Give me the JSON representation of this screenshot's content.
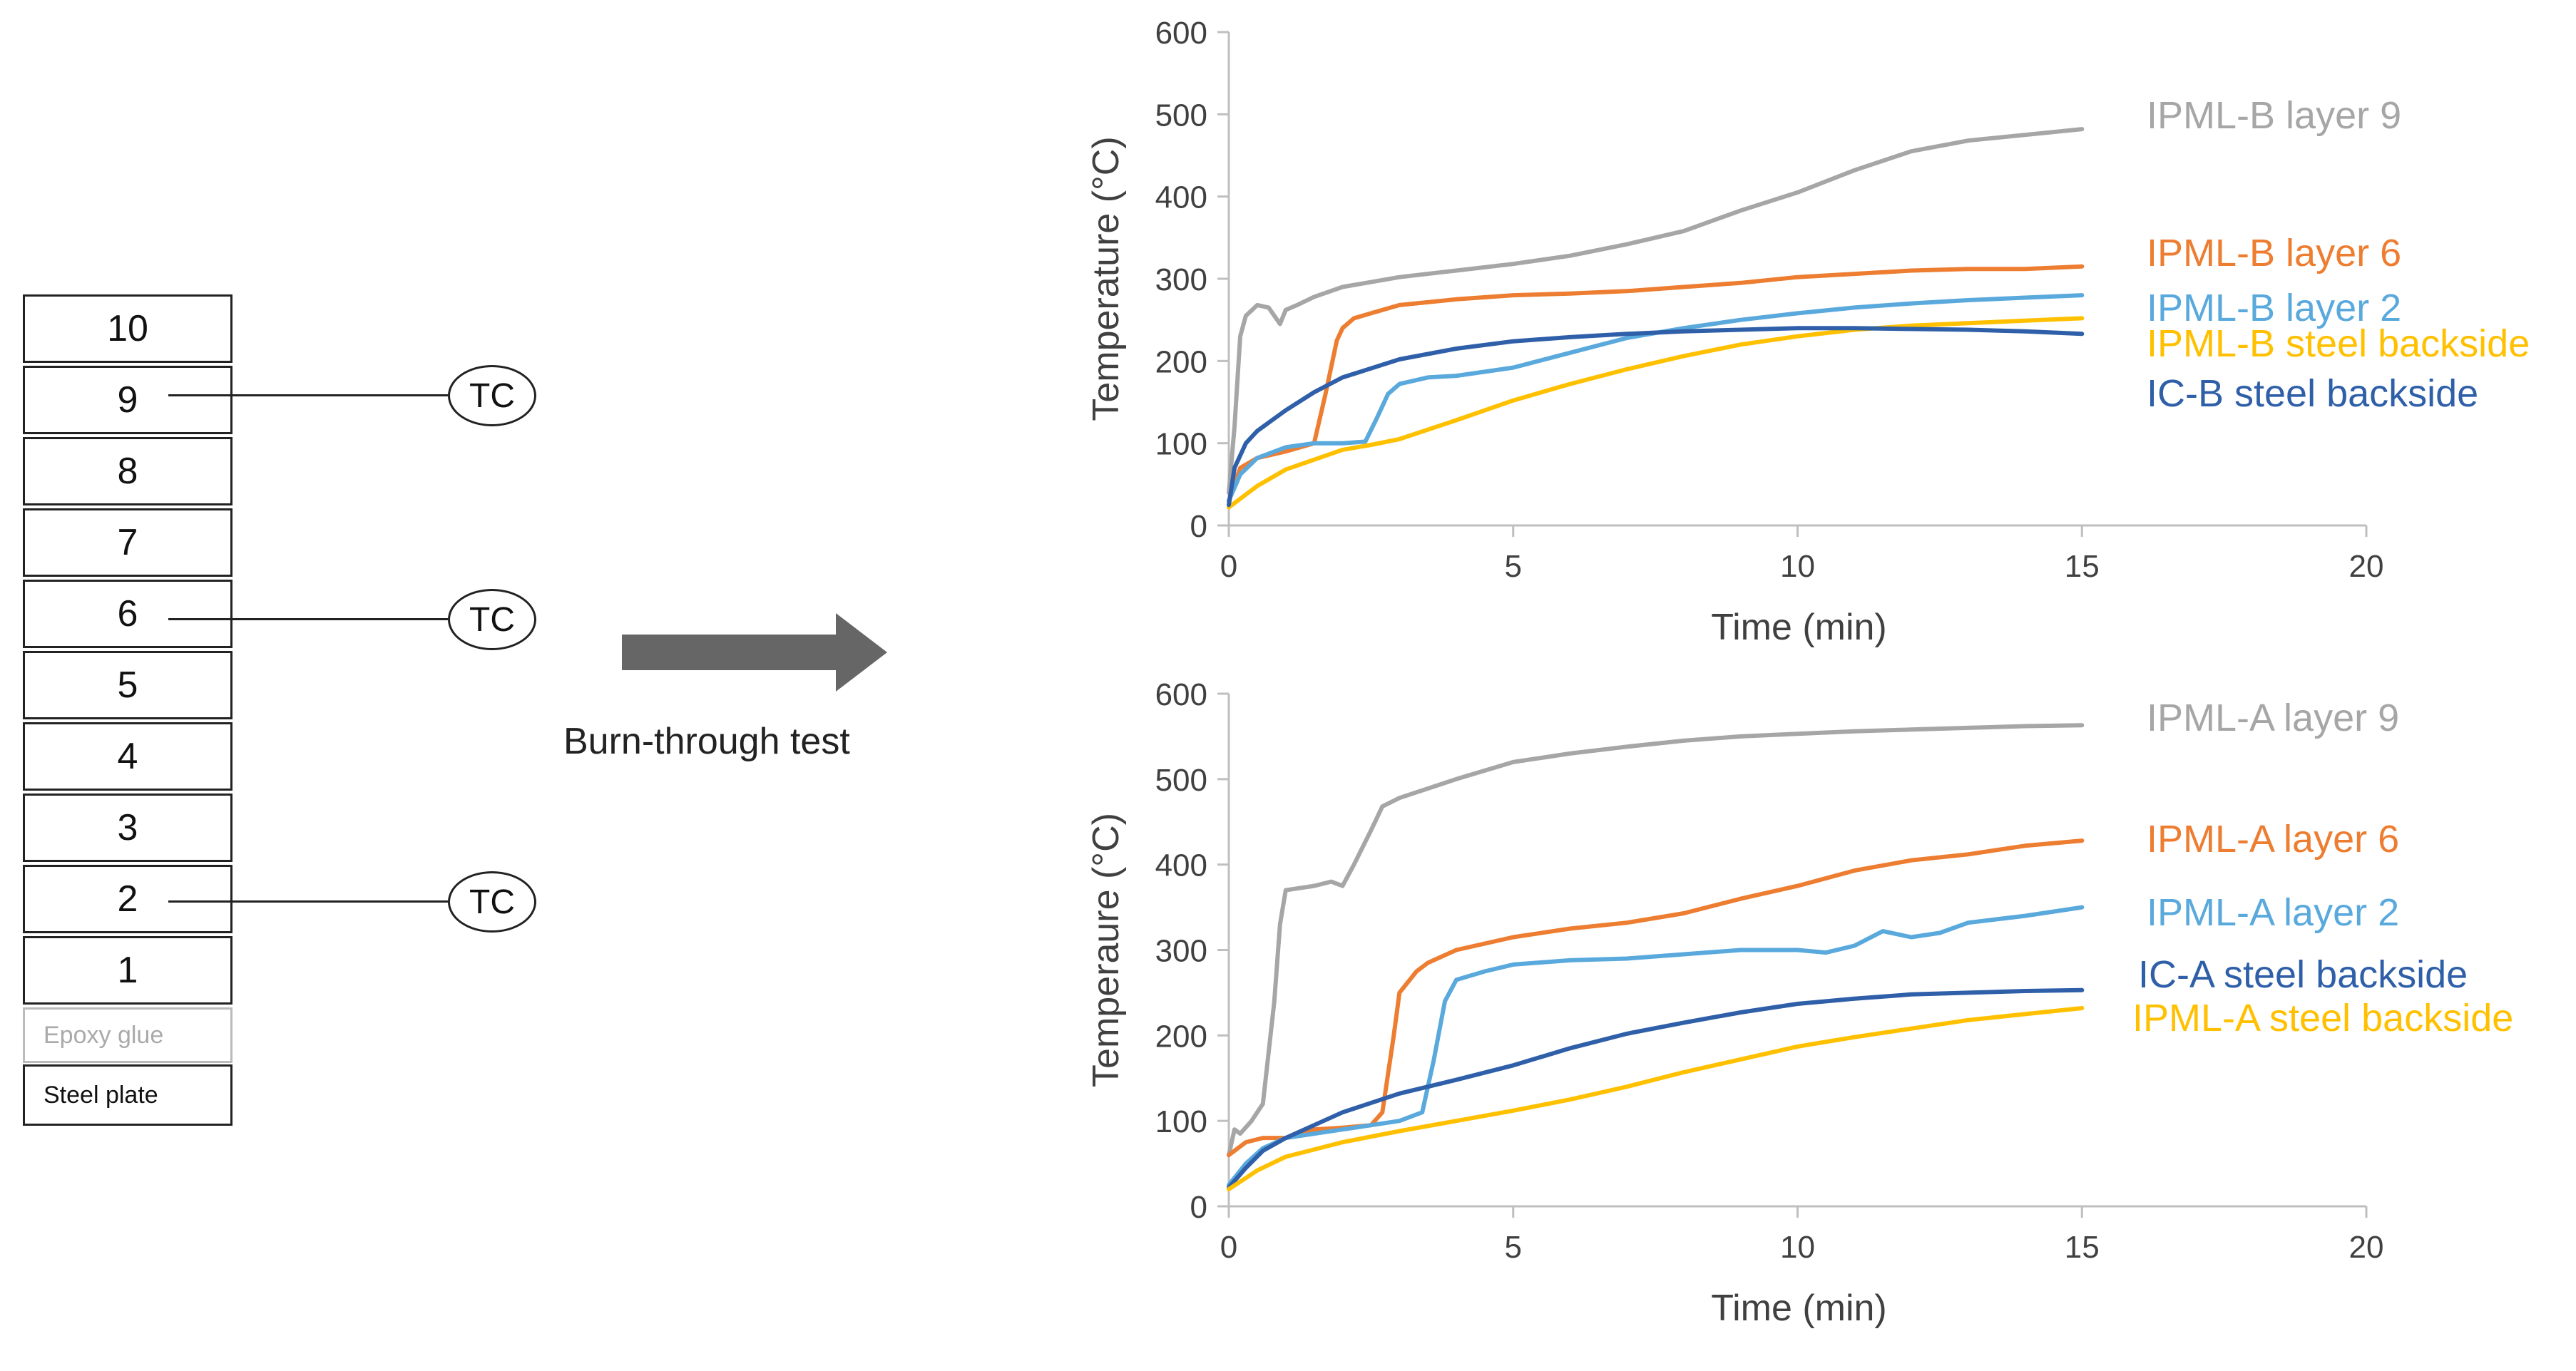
{
  "diagram": {
    "layers": [
      "10",
      "9",
      "8",
      "7",
      "6",
      "5",
      "4",
      "3",
      "2",
      "1"
    ],
    "epoxy_label": "Epoxy glue",
    "steel_label": "Steel plate",
    "thermocouple_label": "TC",
    "thermocouple_layers": [
      "9",
      "6",
      "2"
    ],
    "arrow_label": "Burn-through test"
  },
  "chart_data": [
    {
      "type": "line",
      "title": "",
      "xlabel": "Time (min)",
      "ylabel": "Temperature (°C)",
      "xlim": [
        0,
        20
      ],
      "ylim": [
        0,
        600
      ],
      "xticks": [
        "0",
        "5",
        "10",
        "15",
        "20"
      ],
      "yticks": [
        "0",
        "100",
        "200",
        "300",
        "400",
        "500",
        "600"
      ],
      "grid": false,
      "legend": "inline labels at right",
      "series": [
        {
          "name": "IPML-B layer 9",
          "color": "#a6a6a6",
          "x": [
            0,
            0.1,
            0.2,
            0.3,
            0.5,
            0.7,
            0.8,
            0.9,
            1.0,
            1.2,
            1.5,
            2,
            3,
            4,
            5,
            6,
            7,
            8,
            9,
            10,
            11,
            12,
            13,
            14,
            15
          ],
          "y": [
            40,
            120,
            230,
            255,
            268,
            265,
            255,
            245,
            262,
            268,
            278,
            290,
            302,
            310,
            318,
            328,
            342,
            358,
            383,
            405,
            432,
            455,
            468,
            475,
            482
          ]
        },
        {
          "name": "IPML-B layer 6",
          "color": "#ed7d31",
          "x": [
            0,
            0.2,
            0.5,
            1.0,
            1.5,
            1.7,
            1.9,
            2.0,
            2.2,
            2.5,
            3,
            4,
            5,
            6,
            7,
            8,
            9,
            10,
            11,
            12,
            13,
            14,
            15
          ],
          "y": [
            30,
            70,
            82,
            90,
            100,
            160,
            225,
            240,
            252,
            258,
            268,
            275,
            280,
            282,
            285,
            290,
            295,
            302,
            306,
            310,
            312,
            312,
            315
          ]
        },
        {
          "name": "IPML-B layer 2",
          "color": "#5aa9dd",
          "x": [
            0,
            0.2,
            0.5,
            1.0,
            1.5,
            2.0,
            2.4,
            2.6,
            2.8,
            3.0,
            3.5,
            4,
            5,
            6,
            7,
            8,
            9,
            10,
            11,
            12,
            13,
            14,
            15
          ],
          "y": [
            30,
            62,
            82,
            95,
            100,
            100,
            102,
            130,
            160,
            172,
            180,
            182,
            192,
            210,
            228,
            240,
            250,
            258,
            265,
            270,
            274,
            277,
            280
          ]
        },
        {
          "name": "IPML-B steel backside",
          "color": "#ffc000",
          "x": [
            0,
            0.5,
            1,
            2,
            2.5,
            3,
            4,
            5,
            6,
            7,
            8,
            9,
            10,
            11,
            12,
            13,
            14,
            15
          ],
          "y": [
            22,
            48,
            68,
            92,
            98,
            105,
            128,
            152,
            172,
            190,
            206,
            220,
            230,
            238,
            243,
            246,
            249,
            252
          ]
        },
        {
          "name": "IC-B steel backside",
          "color": "#2e5fa8",
          "x": [
            0,
            0.1,
            0.3,
            0.5,
            1,
            1.5,
            2,
            3,
            4,
            5,
            6,
            7,
            8,
            9,
            10,
            11,
            12,
            13,
            14,
            15
          ],
          "y": [
            25,
            70,
            100,
            115,
            140,
            162,
            180,
            202,
            215,
            224,
            229,
            233,
            236,
            238,
            240,
            240,
            239,
            238,
            236,
            233
          ]
        }
      ]
    },
    {
      "type": "line",
      "title": "",
      "xlabel": "Time (min)",
      "ylabel": "Temperaure (°C)",
      "xlim": [
        0,
        20
      ],
      "ylim": [
        0,
        600
      ],
      "xticks": [
        "0",
        "5",
        "10",
        "15",
        "20"
      ],
      "yticks": [
        "0",
        "100",
        "200",
        "300",
        "400",
        "500",
        "600"
      ],
      "grid": false,
      "legend": "inline labels at right",
      "series": [
        {
          "name": "IPML-A layer 9",
          "color": "#a6a6a6",
          "x": [
            0,
            0.1,
            0.2,
            0.4,
            0.6,
            0.8,
            0.9,
            1.0,
            1.2,
            1.5,
            1.8,
            2.0,
            2.2,
            2.5,
            2.7,
            3,
            4,
            5,
            6,
            7,
            8,
            9,
            10,
            11,
            12,
            13,
            14,
            15
          ],
          "y": [
            60,
            90,
            85,
            100,
            120,
            240,
            330,
            370,
            372,
            375,
            380,
            375,
            400,
            440,
            468,
            478,
            500,
            520,
            530,
            538,
            545,
            550,
            553,
            556,
            558,
            560,
            562,
            563
          ]
        },
        {
          "name": "IPML-A layer 6",
          "color": "#ed7d31",
          "x": [
            0,
            0.3,
            0.6,
            1,
            1.5,
            2,
            2.5,
            2.7,
            2.9,
            3.0,
            3.3,
            3.5,
            4,
            5,
            6,
            7,
            8,
            9,
            10,
            11,
            12,
            13,
            14,
            15
          ],
          "y": [
            60,
            75,
            80,
            80,
            90,
            92,
            95,
            110,
            200,
            250,
            275,
            285,
            300,
            315,
            325,
            332,
            343,
            360,
            375,
            393,
            405,
            412,
            422,
            428
          ]
        },
        {
          "name": "IPML-A layer 2",
          "color": "#5aa9dd",
          "x": [
            0,
            0.3,
            0.6,
            1,
            2,
            3,
            3.4,
            3.6,
            3.8,
            4.0,
            4.5,
            5,
            6,
            7,
            8,
            9,
            10,
            10.5,
            11,
            11.5,
            12,
            12.5,
            13,
            14,
            15
          ],
          "y": [
            25,
            50,
            68,
            80,
            90,
            100,
            110,
            170,
            240,
            265,
            275,
            283,
            288,
            290,
            295,
            300,
            300,
            297,
            305,
            322,
            315,
            320,
            332,
            340,
            350
          ]
        },
        {
          "name": "IC-A steel backside",
          "color": "#2e5fa8",
          "x": [
            0,
            0.3,
            0.6,
            1,
            1.5,
            2,
            3,
            4,
            5,
            6,
            7,
            8,
            9,
            10,
            11,
            12,
            13,
            14,
            15
          ],
          "y": [
            22,
            45,
            65,
            80,
            95,
            110,
            132,
            148,
            165,
            185,
            202,
            215,
            227,
            237,
            243,
            248,
            250,
            252,
            253
          ]
        },
        {
          "name": "IPML-A steel backside",
          "color": "#ffc000",
          "x": [
            0,
            0.5,
            1,
            2,
            3,
            4,
            5,
            6,
            7,
            8,
            9,
            10,
            11,
            12,
            13,
            14,
            15
          ],
          "y": [
            20,
            42,
            58,
            75,
            88,
            100,
            112,
            125,
            140,
            157,
            172,
            187,
            198,
            208,
            218,
            225,
            232
          ]
        }
      ]
    }
  ]
}
